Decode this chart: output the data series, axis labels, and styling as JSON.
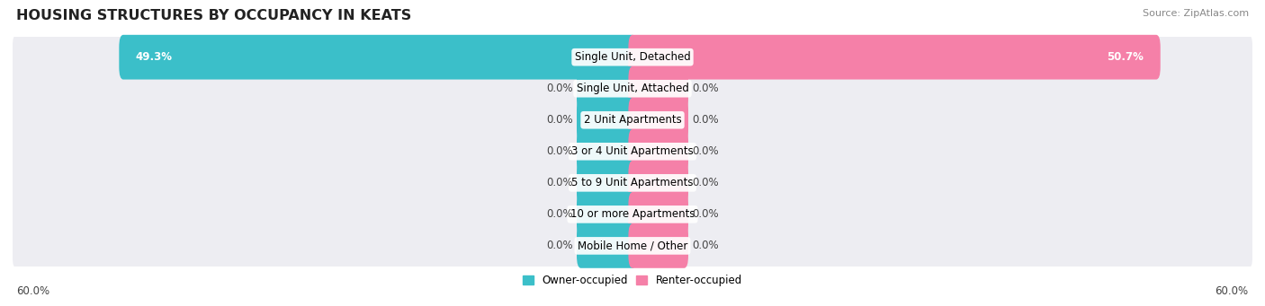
{
  "title": "HOUSING STRUCTURES BY OCCUPANCY IN KEATS",
  "source": "Source: ZipAtlas.com",
  "categories": [
    "Single Unit, Detached",
    "Single Unit, Attached",
    "2 Unit Apartments",
    "3 or 4 Unit Apartments",
    "5 to 9 Unit Apartments",
    "10 or more Apartments",
    "Mobile Home / Other"
  ],
  "owner_values": [
    49.3,
    0.0,
    0.0,
    0.0,
    0.0,
    0.0,
    0.0
  ],
  "renter_values": [
    50.7,
    0.0,
    0.0,
    0.0,
    0.0,
    0.0,
    0.0
  ],
  "owner_color": "#3bbfc9",
  "renter_color": "#f580a8",
  "row_bg_color": "#ededf2",
  "axis_max": 60.0,
  "label_fontsize": 8.5,
  "title_fontsize": 11.5,
  "source_fontsize": 8,
  "legend_owner": "Owner-occupied",
  "legend_renter": "Renter-occupied",
  "min_bar_pct": 5.0
}
